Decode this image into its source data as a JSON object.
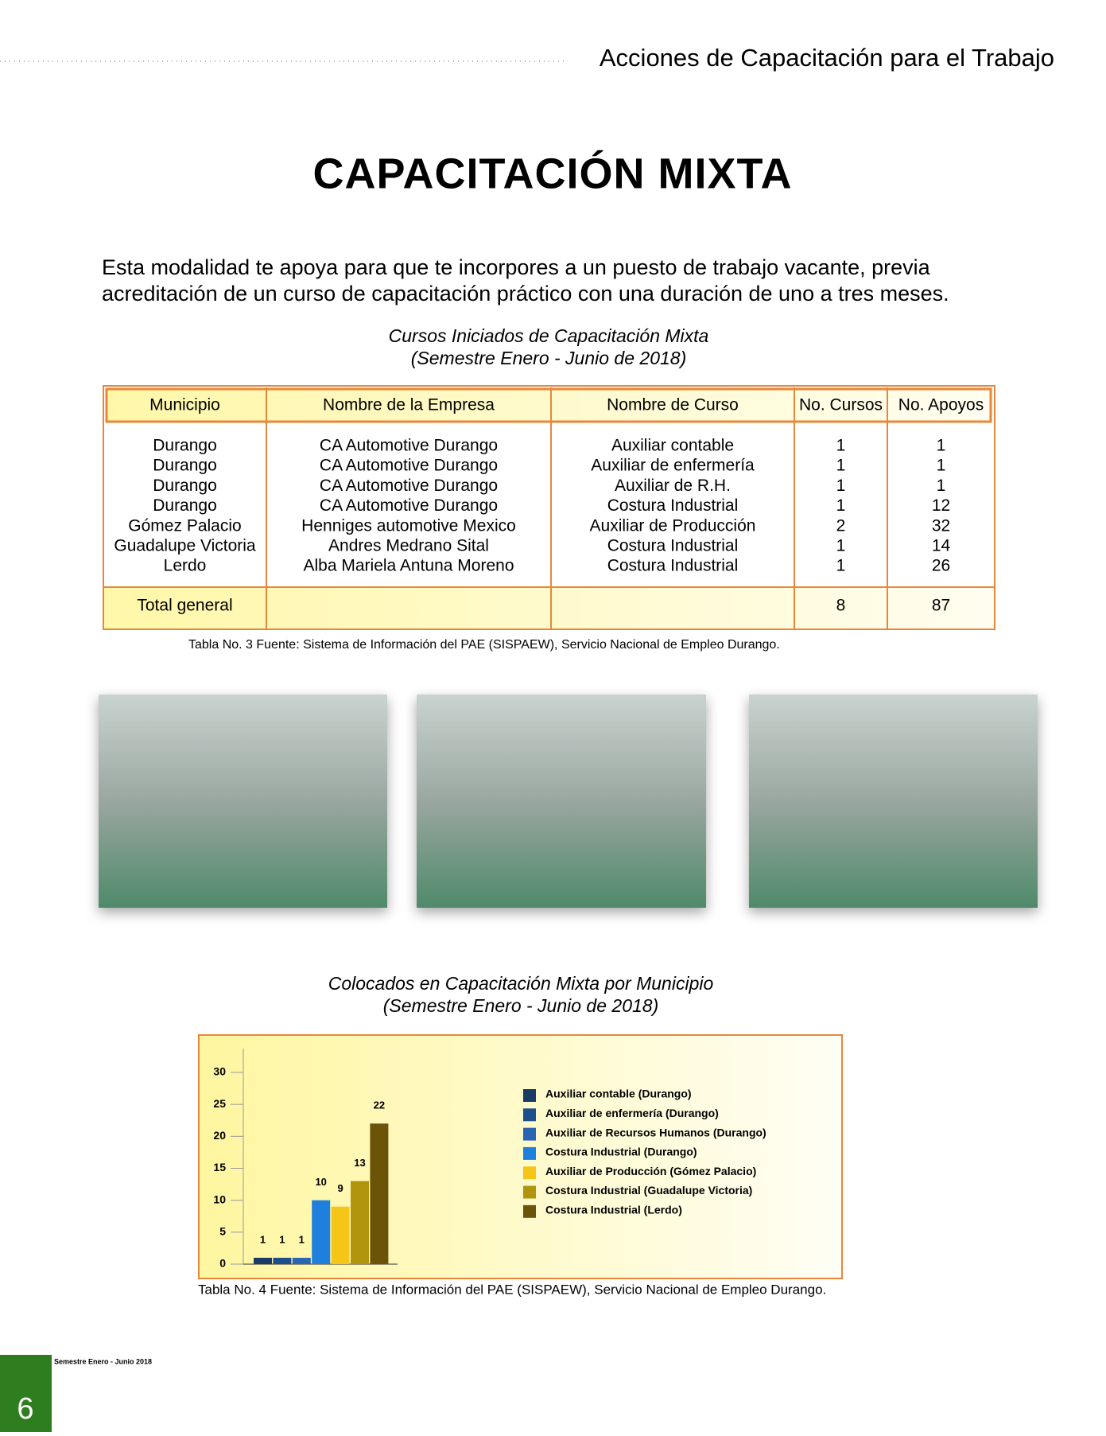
{
  "header": {
    "title": "Acciones de Capacitación para el Trabajo"
  },
  "title": "CAPACITACIÓN MIXTA",
  "intro": [
    "Esta modalidad te apoya para que te incorpores a un puesto de trabajo vacante, previa",
    "acreditación de un curso de capacitación práctico con una duración de uno a tres meses."
  ],
  "table": {
    "caption": [
      "Cursos Iniciados de Capacitación Mixta",
      "(Semestre Enero - Junio de 2018)"
    ],
    "header": [
      "Municipio",
      "Nombre de la Empresa",
      "Nombre de Curso",
      "No. Cursos",
      "No. Apoyos"
    ],
    "rows": [
      [
        "Durango",
        "CA Automotive Durango",
        "Auxiliar contable",
        1,
        1
      ],
      [
        "Durango",
        "CA Automotive Durango",
        "Auxiliar de enfermería",
        1,
        1
      ],
      [
        "Durango",
        "CA Automotive Durango",
        "Auxiliar de R.H.",
        1,
        1
      ],
      [
        "Durango",
        "CA Automotive Durango",
        "Costura Industrial",
        1,
        12
      ],
      [
        "Gómez Palacio",
        "Henniges automotive Mexico",
        "Auxiliar de Producción",
        2,
        32
      ],
      [
        "Guadalupe Victoria",
        "Andres Medrano Sital",
        "Costura Industrial",
        1,
        14
      ],
      [
        "Lerdo",
        "Alba Mariela Antuna Moreno",
        "Costura Industrial",
        1,
        26
      ]
    ],
    "total": {
      "label": "Total general",
      "cursos": 8,
      "apoyos": 87
    },
    "source": "Tabla No. 3 Fuente: Sistema de Información del PAE (SISPAEW), Servicio Nacional de Empleo Durango."
  },
  "chart_data": {
    "type": "bar",
    "title": "Colocados en Capacitación Mixta por Municipio",
    "subtitle": "(Semestre Enero - Junio de 2018)",
    "categories": [
      null
    ],
    "ylim": [
      0,
      30
    ],
    "yticks": [
      0,
      5,
      10,
      15,
      20,
      25,
      30
    ],
    "series": [
      {
        "name": "Auxiliar contable (Durango)",
        "color": "#1b3a66",
        "values": [
          1
        ]
      },
      {
        "name": "Auxiliar de enfermería (Durango)",
        "color": "#1d4f8c",
        "values": [
          1
        ]
      },
      {
        "name": "Auxiliar de Recursos Humanos (Durango)",
        "color": "#2a65b3",
        "values": [
          1
        ]
      },
      {
        "name": "Costura Industrial (Durango)",
        "color": "#1e7fdc",
        "values": [
          10
        ]
      },
      {
        "name": "Auxiliar de Producción (Gómez Palacio)",
        "color": "#f5c518",
        "values": [
          9
        ]
      },
      {
        "name": "Costura Industrial (Guadalupe Victoria)",
        "color": "#b0950c",
        "values": [
          13
        ]
      },
      {
        "name": "Costura Industrial (Lerdo)",
        "color": "#6b5407",
        "values": [
          22
        ]
      }
    ],
    "source": "Tabla No. 4 Fuente: Sistema de Información del PAE (SISPAEW), Servicio Nacional de Empleo Durango."
  },
  "footer": {
    "page": "6",
    "edition": "Semestre Enero - Junio 2018"
  }
}
